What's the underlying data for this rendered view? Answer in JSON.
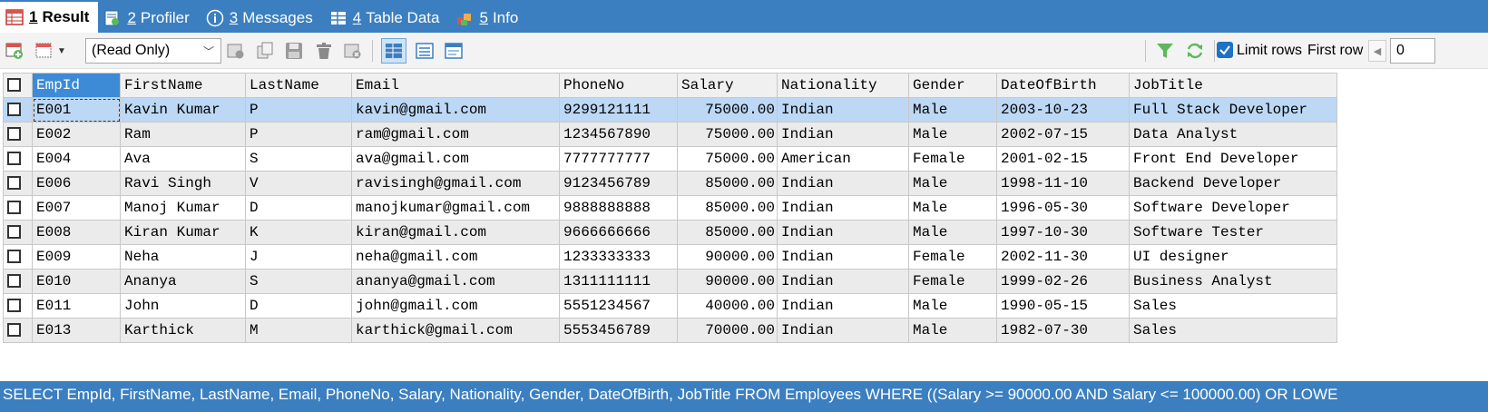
{
  "tabs": [
    {
      "num": "1",
      "label": "Result",
      "icon": "grid-result-icon",
      "active": true
    },
    {
      "num": "2",
      "label": "Profiler",
      "icon": "profiler-icon",
      "active": false
    },
    {
      "num": "3",
      "label": "Messages",
      "icon": "info-circle-icon",
      "active": false
    },
    {
      "num": "4",
      "label": "Table Data",
      "icon": "table-icon",
      "active": false
    },
    {
      "num": "5",
      "label": "Info",
      "icon": "info-blocks-icon",
      "active": false
    }
  ],
  "toolbar": {
    "mode_select_value": "(Read Only)",
    "limit_rows_label": "Limit rows",
    "limit_rows_checked": true,
    "first_row_label": "First row",
    "first_row_value": "0"
  },
  "grid": {
    "columns": [
      "EmpId",
      "FirstName",
      "LastName",
      "Email",
      "PhoneNo",
      "Salary",
      "Nationality",
      "Gender",
      "DateOfBirth",
      "JobTitle"
    ],
    "selected_column": "EmpId",
    "selected_row": 0,
    "rows": [
      [
        "E001",
        "Kavin Kumar",
        "P",
        "kavin@gmail.com",
        "9299121111",
        "75000.00",
        "Indian",
        "Male",
        "2003-10-23",
        "Full Stack Developer"
      ],
      [
        "E002",
        "Ram",
        "P",
        "ram@gmail.com",
        "1234567890",
        "75000.00",
        "Indian",
        "Male",
        "2002-07-15",
        "Data Analyst"
      ],
      [
        "E004",
        "Ava",
        "S",
        "ava@gmail.com",
        "7777777777",
        "75000.00",
        "American",
        "Female",
        "2001-02-15",
        "Front End Developer"
      ],
      [
        "E006",
        "Ravi Singh",
        "V",
        "ravisingh@gmail.com",
        "9123456789",
        "85000.00",
        "Indian",
        "Male",
        "1998-11-10",
        "Backend Developer"
      ],
      [
        "E007",
        "Manoj Kumar",
        "D",
        "manojkumar@gmail.com",
        "9888888888",
        "85000.00",
        "Indian",
        "Male",
        "1996-05-30",
        "Software Developer"
      ],
      [
        "E008",
        "Kiran Kumar",
        "K",
        "kiran@gmail.com",
        "9666666666",
        "85000.00",
        "Indian",
        "Male",
        "1997-10-30",
        "Software Tester"
      ],
      [
        "E009",
        "Neha",
        "J",
        "neha@gmail.com",
        "1233333333",
        "90000.00",
        "Indian",
        "Female",
        "2002-11-30",
        "UI designer"
      ],
      [
        "E010",
        "Ananya",
        "S",
        "ananya@gmail.com",
        "1311111111",
        "90000.00",
        "Indian",
        "Female",
        "1999-02-26",
        "Business Analyst"
      ],
      [
        "E011",
        "John",
        "D",
        "john@gmail.com",
        "5551234567",
        "40000.00",
        "Indian",
        "Male",
        "1990-05-15",
        "Sales"
      ],
      [
        "E013",
        "Karthick",
        "M",
        "karthick@gmail.com",
        "5553456789",
        "70000.00",
        "Indian",
        "Male",
        "1982-07-30",
        "Sales"
      ]
    ]
  },
  "query_text": "SELECT EmpId, FirstName, LastName, Email, PhoneNo, Salary, Nationality, Gender, DateOfBirth, JobTitle FROM Employees WHERE ((Salary >= 90000.00 AND Salary <= 100000.00) OR LOWE",
  "colors": {
    "accent": "#3b7fc0",
    "selected_row": "#bcd8f5",
    "selected_header": "#3d8ad6"
  }
}
